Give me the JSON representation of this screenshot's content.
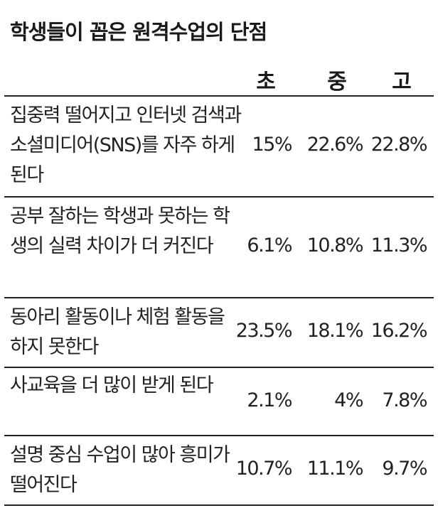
{
  "title": "학생들이 꼽은 원격수업의 단점",
  "chart_data": {
    "type": "table",
    "title": "학생들이 꼽은 원격수업의 단점",
    "columns": [
      "초",
      "중",
      "고"
    ],
    "rows": [
      {
        "label": "집중력 떨어지고 인터넷 검색과 소셜미디어(SNS)를 자주 하게 된다",
        "values": [
          "15%",
          "22.6%",
          "22.8%"
        ]
      },
      {
        "label": "공부 잘하는 학생과 못하는 학생의 실력 차이가 더 커진다",
        "values": [
          "6.1%",
          "10.8%",
          "11.3%"
        ]
      },
      {
        "label": "동아리 활동이나 체험 활동을 하지 못한다",
        "values": [
          "23.5%",
          "18.1%",
          "16.2%"
        ]
      },
      {
        "label": "사교육을 더 많이 받게 된다",
        "values": [
          "2.1%",
          "4%",
          "7.8%"
        ]
      },
      {
        "label": "설명 중심 수업이 많아 흥미가 떨어진다",
        "values": [
          "10.7%",
          "11.1%",
          "9.7%"
        ]
      }
    ]
  }
}
